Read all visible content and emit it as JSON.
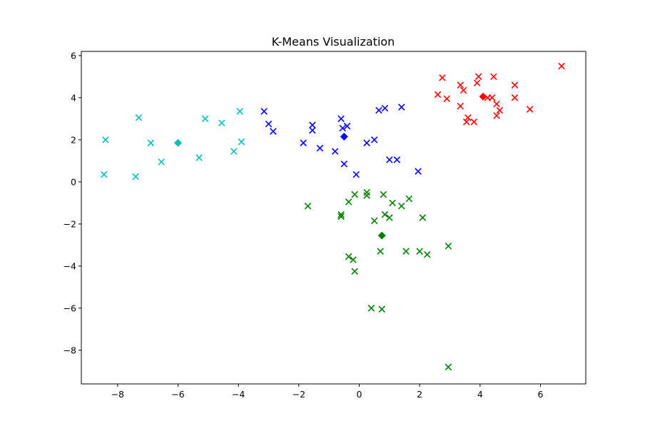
{
  "chart_data": {
    "type": "scatter",
    "title": "K-Means Visualization",
    "xlabel": "",
    "ylabel": "",
    "xlim": [
      -9.2,
      7.5
    ],
    "ylim": [
      -9.6,
      6.2
    ],
    "xticks": [
      -8,
      -6,
      -4,
      -2,
      0,
      2,
      4,
      6
    ],
    "yticks": [
      -8,
      -6,
      -4,
      -2,
      0,
      2,
      4,
      6
    ],
    "xtick_labels": [
      "−8",
      "−6",
      "−4",
      "−2",
      "0",
      "2",
      "4",
      "6"
    ],
    "ytick_labels": [
      "−8",
      "−6",
      "−4",
      "−2",
      "0",
      "2",
      "4",
      "6"
    ],
    "grid": false,
    "legend": "none",
    "series": [
      {
        "color": "#ff0000",
        "marker": "x",
        "points": [
          [
            6.7,
            5.5
          ],
          [
            2.75,
            4.95
          ],
          [
            3.95,
            5.0
          ],
          [
            4.45,
            5.0
          ],
          [
            5.15,
            4.6
          ],
          [
            3.35,
            4.6
          ],
          [
            3.9,
            4.7
          ],
          [
            3.45,
            4.35
          ],
          [
            2.6,
            4.15
          ],
          [
            2.9,
            3.95
          ],
          [
            4.4,
            4.0
          ],
          [
            4.25,
            4.0
          ],
          [
            5.15,
            4.0
          ],
          [
            4.55,
            3.7
          ],
          [
            3.35,
            3.6
          ],
          [
            4.65,
            3.4
          ],
          [
            5.65,
            3.45
          ],
          [
            4.55,
            3.15
          ],
          [
            3.6,
            3.05
          ],
          [
            3.55,
            2.85
          ],
          [
            3.8,
            2.85
          ]
        ],
        "centroid": [
          4.1,
          4.05
        ]
      },
      {
        "color": "#0000ff",
        "marker": "x",
        "points": [
          [
            -3.15,
            3.35
          ],
          [
            -3.0,
            2.75
          ],
          [
            -2.85,
            2.4
          ],
          [
            -1.55,
            2.7
          ],
          [
            -1.55,
            2.45
          ],
          [
            -0.6,
            3.0
          ],
          [
            -0.55,
            2.55
          ],
          [
            -0.4,
            2.65
          ],
          [
            0.65,
            3.4
          ],
          [
            0.85,
            3.5
          ],
          [
            1.4,
            3.55
          ],
          [
            -1.85,
            1.85
          ],
          [
            -1.3,
            1.6
          ],
          [
            -0.8,
            1.45
          ],
          [
            0.25,
            1.85
          ],
          [
            0.5,
            2.0
          ],
          [
            1.0,
            1.05
          ],
          [
            1.25,
            1.05
          ],
          [
            -0.5,
            0.85
          ],
          [
            -0.1,
            0.35
          ],
          [
            1.95,
            0.5
          ]
        ],
        "centroid": [
          -0.5,
          2.15
        ]
      },
      {
        "color": "#00bfbf",
        "marker": "x",
        "points": [
          [
            -7.3,
            3.05
          ],
          [
            -5.1,
            3.0
          ],
          [
            -3.95,
            3.35
          ],
          [
            -4.55,
            2.8
          ],
          [
            -8.4,
            2.0
          ],
          [
            -6.9,
            1.85
          ],
          [
            -3.9,
            1.9
          ],
          [
            -4.15,
            1.45
          ],
          [
            -5.3,
            1.15
          ],
          [
            -6.55,
            0.95
          ],
          [
            -8.45,
            0.35
          ],
          [
            -7.4,
            0.25
          ]
        ],
        "centroid": [
          -6.0,
          1.85
        ]
      },
      {
        "color": "#008000",
        "marker": "x",
        "points": [
          [
            0.25,
            -0.5
          ],
          [
            0.25,
            -0.65
          ],
          [
            -0.15,
            -0.6
          ],
          [
            0.8,
            -0.6
          ],
          [
            1.65,
            -0.8
          ],
          [
            -0.35,
            -0.95
          ],
          [
            1.1,
            -1.0
          ],
          [
            -1.7,
            -1.15
          ],
          [
            1.4,
            -1.15
          ],
          [
            -0.6,
            -1.55
          ],
          [
            -0.6,
            -1.65
          ],
          [
            0.85,
            -1.55
          ],
          [
            1.0,
            -1.7
          ],
          [
            0.5,
            -1.85
          ],
          [
            2.1,
            -1.7
          ],
          [
            -0.35,
            -3.55
          ],
          [
            -0.2,
            -3.7
          ],
          [
            0.7,
            -3.3
          ],
          [
            1.55,
            -3.3
          ],
          [
            2.0,
            -3.3
          ],
          [
            2.25,
            -3.45
          ],
          [
            2.95,
            -3.05
          ],
          [
            -0.15,
            -4.25
          ],
          [
            0.4,
            -6.0
          ],
          [
            0.75,
            -6.05
          ],
          [
            2.95,
            -8.8
          ]
        ],
        "centroid": [
          0.75,
          -2.55
        ]
      }
    ]
  }
}
